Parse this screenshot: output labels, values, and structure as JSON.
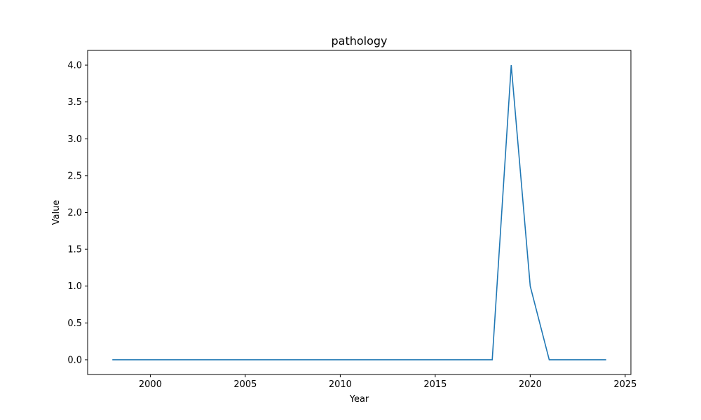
{
  "chart_data": {
    "type": "line",
    "title": "pathology",
    "xlabel": "Year",
    "ylabel": "Value",
    "x": [
      1998,
      1999,
      2000,
      2001,
      2002,
      2003,
      2004,
      2005,
      2006,
      2007,
      2008,
      2009,
      2010,
      2011,
      2012,
      2013,
      2014,
      2015,
      2016,
      2017,
      2018,
      2019,
      2020,
      2021,
      2022,
      2023,
      2024
    ],
    "series": [
      {
        "values": [
          0,
          0,
          0,
          0,
          0,
          0,
          0,
          0,
          0,
          0,
          0,
          0,
          0,
          0,
          0,
          0,
          0,
          0,
          0,
          0,
          0,
          4,
          1,
          0,
          0,
          0,
          0
        ]
      }
    ],
    "xlim": [
      1996.7,
      2025.3
    ],
    "ylim": [
      -0.2,
      4.2
    ],
    "xticks": [
      2000,
      2005,
      2010,
      2015,
      2020,
      2025
    ],
    "yticks": [
      0.0,
      0.5,
      1.0,
      1.5,
      2.0,
      2.5,
      3.0,
      3.5,
      4.0
    ],
    "ytick_labels": [
      "0.0",
      "0.5",
      "1.0",
      "1.5",
      "2.0",
      "2.5",
      "3.0",
      "3.5",
      "4.0"
    ],
    "grid": false,
    "line_color": "#1f77b4"
  }
}
